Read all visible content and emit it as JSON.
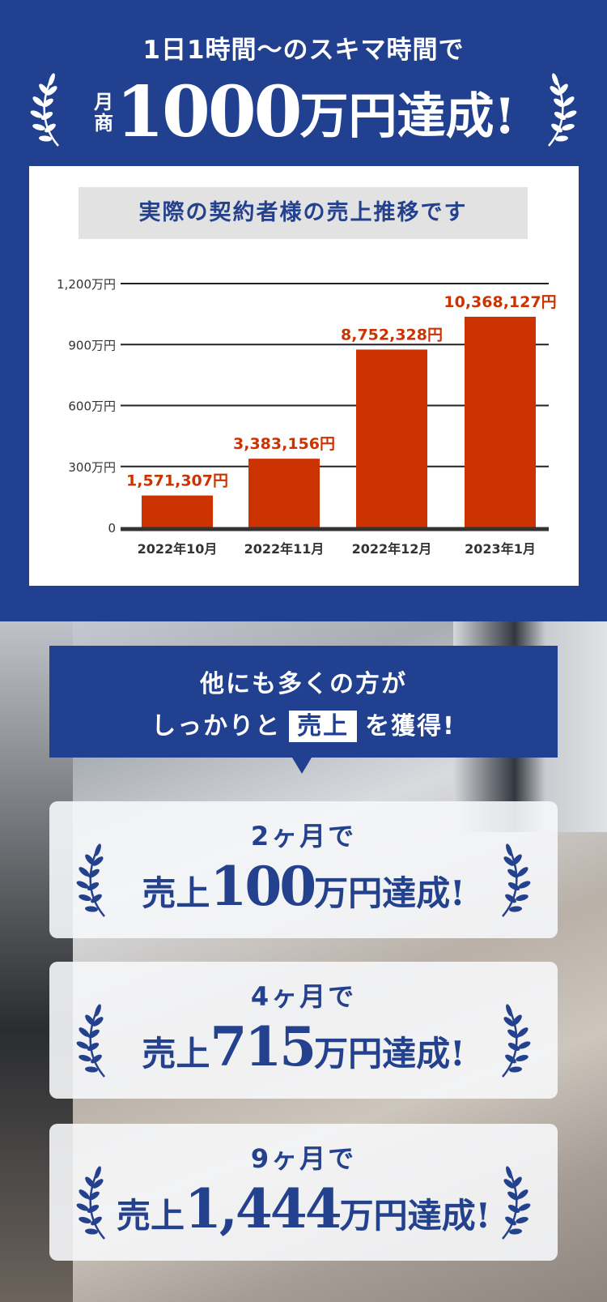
{
  "header": {
    "subtitle": "1日1時間〜のスキマ時間で",
    "headline_prefix": [
      "月",
      "商"
    ],
    "headline_number": "1000",
    "headline_suffix": "万円達成!"
  },
  "chart_title": "実際の契約者様の売上推移です",
  "chart_data": {
    "type": "bar",
    "categories": [
      "2022年10月",
      "2022年11月",
      "2022年12月",
      "2023年1月"
    ],
    "values": [
      1571307,
      3383156,
      8752328,
      10368127
    ],
    "data_labels": [
      "1,571,307円",
      "3,383,156円",
      "8,752,328円",
      "10,368,127円"
    ],
    "y_ticks": [
      "0",
      "300万円",
      "600万円",
      "900万円",
      "1,200万円"
    ],
    "ylim": [
      0,
      12000000
    ],
    "grid": true,
    "bar_color": "#cc3300"
  },
  "callout": {
    "line1": "他にも多くの方が",
    "line2_pre": "しっかりと",
    "line2_highlight": "売上",
    "line2_post": "を獲得!"
  },
  "achievements": [
    {
      "period": "2ヶ月で",
      "prefix": "売上",
      "amount": "100",
      "suffix": "万円達成!"
    },
    {
      "period": "4ヶ月で",
      "prefix": "売上",
      "amount": "715",
      "suffix": "万円達成!"
    },
    {
      "period": "9ヶ月で",
      "prefix": "売上",
      "amount": "1,444",
      "suffix": "万円達成!"
    }
  ],
  "colors": {
    "brand_blue": "#21408f",
    "bar_red": "#cc3300",
    "title_gray": "#e2e2e2"
  }
}
